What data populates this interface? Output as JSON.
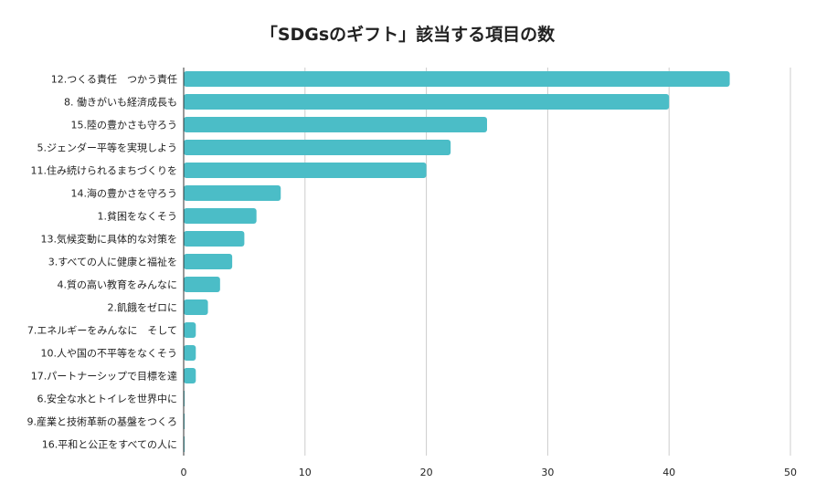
{
  "chart_data": {
    "type": "bar",
    "orientation": "horizontal",
    "title": "「SDGsのギフト」該当する項目の数",
    "xlabel": "",
    "ylabel": "",
    "xlim": [
      0,
      50
    ],
    "xticks": [
      0,
      10,
      20,
      30,
      40,
      50
    ],
    "grid": true,
    "bar_color": "#4bbdc7",
    "categories": [
      "12.つくる責任　つかう責任",
      "8. 働きがいも経済成長も",
      "15.陸の豊かさも守ろう",
      "5.ジェンダー平等を実現しよう",
      "11.住み続けられるまちづくりを",
      "14.海の豊かさを守ろう",
      "1.貧困をなくそう",
      "13.気候変動に具体的な対策を",
      "3.すべての人に健康と福祉を",
      "4.質の高い教育をみんなに",
      "2.飢餓をゼロに",
      "7.エネルギーをみんなに　そして",
      "10.人や国の不平等をなくそう",
      "17.パートナーシップで目標を達",
      "6.安全な水とトイレを世界中に",
      "9.産業と技術革新の基盤をつくろ",
      "16.平和と公正をすべての人に"
    ],
    "values": [
      45,
      40,
      25,
      22,
      20,
      8,
      6,
      5,
      4,
      3,
      2,
      1,
      1,
      1,
      0,
      0,
      0
    ]
  }
}
